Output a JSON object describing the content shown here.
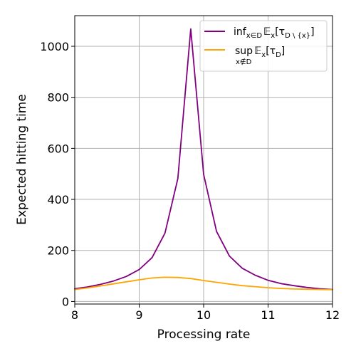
{
  "chart_data": {
    "type": "line",
    "xlabel": "Processing rate",
    "ylabel": "Expected hitting time",
    "xlim": [
      8,
      12
    ],
    "ylim": [
      -10,
      1120
    ],
    "xticks": [
      8,
      9,
      10,
      11,
      12
    ],
    "yticks": [
      0,
      200,
      400,
      600,
      800,
      1000
    ],
    "grid": true,
    "legend_position": "top-right",
    "series": [
      {
        "name_parts": {
          "main": "inf",
          "sub": "x∈D",
          "expr": "𝔼",
          "expr_sub": "x",
          "bracket": "[τ",
          "bracket_sub": "D \\ {x}",
          "close": "]"
        },
        "color": "#800080",
        "x": [
          8.0,
          8.2,
          8.4,
          8.6,
          8.8,
          9.0,
          9.2,
          9.4,
          9.6,
          9.8,
          10.0,
          10.2,
          10.4,
          10.6,
          10.8,
          11.0,
          11.2,
          11.4,
          11.6,
          11.8,
          12.0
        ],
        "y": [
          50,
          57,
          67,
          80,
          98,
          125,
          172,
          268,
          482,
          1068,
          498,
          275,
          178,
          130,
          103,
          83,
          70,
          62,
          55,
          50,
          47
        ]
      },
      {
        "name_parts": {
          "main": "sup",
          "sub": "x∉D",
          "expr": "𝔼",
          "expr_sub": "x",
          "bracket": "[τ",
          "bracket_sub": "D",
          "close": "]"
        },
        "color": "#ffa500",
        "x": [
          8.0,
          8.2,
          8.4,
          8.6,
          8.8,
          9.0,
          9.2,
          9.4,
          9.6,
          9.8,
          10.0,
          10.2,
          10.4,
          10.6,
          10.8,
          11.0,
          11.2,
          11.4,
          11.6,
          11.8,
          12.0
        ],
        "y": [
          47,
          53,
          61,
          69,
          77,
          85,
          92,
          95,
          94,
          90,
          82,
          75,
          68,
          62,
          58,
          54,
          51,
          49,
          48,
          47,
          46
        ]
      }
    ]
  }
}
